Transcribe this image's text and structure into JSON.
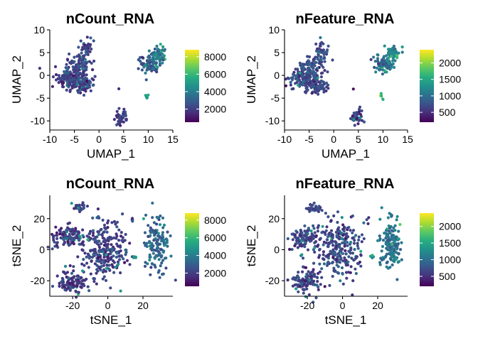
{
  "chart_data": [
    {
      "type": "scatter",
      "title": "nCount_RNA",
      "xlabel": "UMAP_1",
      "ylabel": "UMAP_2",
      "xlim": [
        -10,
        15
      ],
      "ylim": [
        -12,
        10
      ],
      "xticks": [
        -10,
        -5,
        0,
        5,
        10,
        15
      ],
      "yticks": [
        -10,
        -5,
        0,
        5,
        10
      ],
      "colorbar": {
        "min": 500,
        "max": 8800,
        "ticks": [
          2000,
          4000,
          6000,
          8000
        ],
        "colormap": "viridis"
      },
      "clusters": [
        {
          "cx": -5.5,
          "cy": -0.5,
          "sx": 1.6,
          "sy": 1.4,
          "n": 170,
          "cmean": 0.2
        },
        {
          "cx": -3.2,
          "cy": -2.3,
          "sx": 1.0,
          "sy": 0.7,
          "n": 60,
          "cmean": 0.2
        },
        {
          "cx": -4.0,
          "cy": 2.4,
          "sx": 1.2,
          "sy": 1.0,
          "n": 50,
          "cmean": 0.22
        },
        {
          "cx": -2.6,
          "cy": 5.5,
          "sx": 0.7,
          "sy": 1.3,
          "n": 40,
          "cmean": 0.22
        },
        {
          "cx": 10.0,
          "cy": 2.4,
          "sx": 1.2,
          "sy": 0.9,
          "n": 75,
          "cmean": 0.3
        },
        {
          "cx": 12.0,
          "cy": 4.8,
          "sx": 0.8,
          "sy": 0.9,
          "n": 55,
          "cmean": 0.38
        },
        {
          "cx": 4.5,
          "cy": -9.2,
          "sx": 0.6,
          "sy": 0.8,
          "n": 40,
          "cmean": 0.18
        },
        {
          "cx": 9.8,
          "cy": -4.7,
          "sx": 0.2,
          "sy": 0.3,
          "n": 6,
          "cmean": 0.55
        },
        {
          "cx": 4.0,
          "cy": -3.0,
          "sx": 0.05,
          "sy": 0.05,
          "n": 1,
          "cmean": 0.1
        }
      ]
    },
    {
      "type": "scatter",
      "title": "nFeature_RNA",
      "xlabel": "UMAP_1",
      "ylabel": "UMAP_2",
      "xlim": [
        -10,
        15
      ],
      "ylim": [
        -12,
        10
      ],
      "xticks": [
        -10,
        -5,
        0,
        5,
        10,
        15
      ],
      "yticks": [
        -10,
        -5,
        0,
        5,
        10
      ],
      "colorbar": {
        "min": 200,
        "max": 2400,
        "ticks": [
          500,
          1000,
          1500,
          2000
        ],
        "colormap": "viridis"
      },
      "clusters": [
        {
          "cx": -5.5,
          "cy": -0.5,
          "sx": 1.6,
          "sy": 1.4,
          "n": 170,
          "cmean": 0.22
        },
        {
          "cx": -3.2,
          "cy": -2.3,
          "sx": 1.0,
          "sy": 0.7,
          "n": 60,
          "cmean": 0.22
        },
        {
          "cx": -4.0,
          "cy": 2.4,
          "sx": 1.2,
          "sy": 1.0,
          "n": 50,
          "cmean": 0.25
        },
        {
          "cx": -2.6,
          "cy": 5.5,
          "sx": 0.7,
          "sy": 1.3,
          "n": 40,
          "cmean": 0.25
        },
        {
          "cx": 10.0,
          "cy": 2.4,
          "sx": 1.2,
          "sy": 0.9,
          "n": 75,
          "cmean": 0.35
        },
        {
          "cx": 12.0,
          "cy": 4.8,
          "sx": 0.8,
          "sy": 0.9,
          "n": 55,
          "cmean": 0.45
        },
        {
          "cx": 4.5,
          "cy": -9.2,
          "sx": 0.6,
          "sy": 0.8,
          "n": 40,
          "cmean": 0.2
        },
        {
          "cx": 9.8,
          "cy": -4.7,
          "sx": 0.2,
          "sy": 0.3,
          "n": 6,
          "cmean": 0.6
        },
        {
          "cx": 4.0,
          "cy": -3.0,
          "sx": 0.05,
          "sy": 0.05,
          "n": 1,
          "cmean": 0.1
        }
      ]
    },
    {
      "type": "scatter",
      "title": "nCount_RNA",
      "xlabel": "tSNE_1",
      "ylabel": "tSNE_2",
      "xlim": [
        -33,
        37
      ],
      "ylim": [
        -30,
        35
      ],
      "xticks": [
        -20,
        0,
        20
      ],
      "yticks": [
        -20,
        0,
        20
      ],
      "colorbar": {
        "min": 500,
        "max": 8800,
        "ticks": [
          2000,
          4000,
          6000,
          8000
        ],
        "colormap": "viridis"
      },
      "clusters": [
        {
          "cx": -2,
          "cy": 0,
          "sx": 6.5,
          "sy": 9.5,
          "n": 260,
          "cmean": 0.2
        },
        {
          "cx": -22,
          "cy": 8,
          "sx": 4.5,
          "sy": 4.0,
          "n": 110,
          "cmean": 0.18
        },
        {
          "cx": -20,
          "cy": -20,
          "sx": 4.5,
          "sy": 4.0,
          "n": 110,
          "cmean": 0.18
        },
        {
          "cx": -16,
          "cy": 27,
          "sx": 2.5,
          "sy": 1.5,
          "n": 35,
          "cmean": 0.2
        },
        {
          "cx": 28,
          "cy": 3,
          "sx": 3.5,
          "sy": 9.0,
          "n": 140,
          "cmean": 0.32
        },
        {
          "cx": 16,
          "cy": -5,
          "sx": 0.8,
          "sy": 0.8,
          "n": 5,
          "cmean": 0.5
        },
        {
          "cx": 14,
          "cy": 19,
          "sx": 0.5,
          "sy": 1.2,
          "n": 3,
          "cmean": 0.15
        }
      ]
    },
    {
      "type": "scatter",
      "title": "nFeature_RNA",
      "xlabel": "tSNE_1",
      "ylabel": "tSNE_2",
      "xlim": [
        -33,
        37
      ],
      "ylim": [
        -30,
        35
      ],
      "xticks": [
        -20,
        0,
        20
      ],
      "yticks": [
        -20,
        0,
        20
      ],
      "colorbar": {
        "min": 200,
        "max": 2400,
        "ticks": [
          500,
          1000,
          1500,
          2000
        ],
        "colormap": "viridis"
      },
      "clusters": [
        {
          "cx": -2,
          "cy": 0,
          "sx": 6.5,
          "sy": 9.5,
          "n": 260,
          "cmean": 0.22
        },
        {
          "cx": -22,
          "cy": 8,
          "sx": 4.5,
          "sy": 4.0,
          "n": 110,
          "cmean": 0.2
        },
        {
          "cx": -20,
          "cy": -20,
          "sx": 4.5,
          "sy": 4.0,
          "n": 110,
          "cmean": 0.2
        },
        {
          "cx": -16,
          "cy": 27,
          "sx": 2.5,
          "sy": 1.5,
          "n": 35,
          "cmean": 0.22
        },
        {
          "cx": 28,
          "cy": 3,
          "sx": 3.5,
          "sy": 9.0,
          "n": 140,
          "cmean": 0.38
        },
        {
          "cx": 16,
          "cy": -5,
          "sx": 0.8,
          "sy": 0.8,
          "n": 5,
          "cmean": 0.55
        },
        {
          "cx": 14,
          "cy": 19,
          "sx": 0.5,
          "sy": 1.2,
          "n": 3,
          "cmean": 0.15
        }
      ]
    }
  ]
}
